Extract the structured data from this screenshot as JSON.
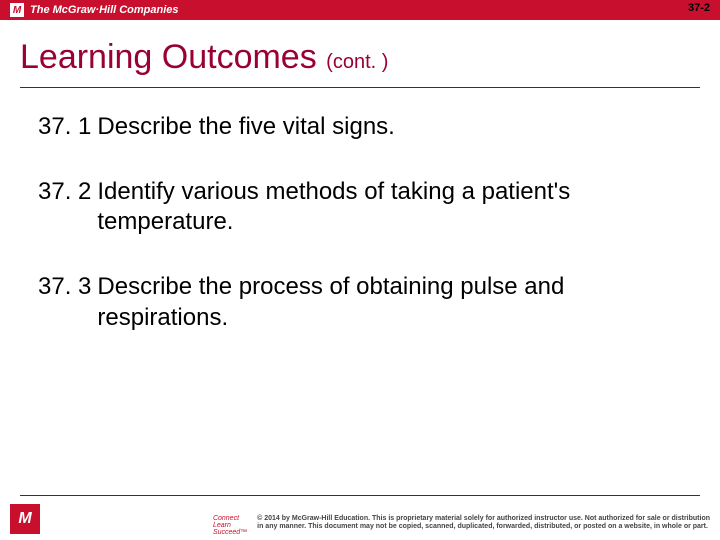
{
  "brand": {
    "logo_letter": "M",
    "companies_text": "The McGraw·Hill Companies",
    "bar_color": "#c8102e"
  },
  "slide_number": "37-2",
  "title": {
    "main": "Learning Outcomes ",
    "cont": "(cont. )",
    "color": "#990033"
  },
  "outcomes": [
    {
      "num": "37. 1",
      "text": "Describe the five vital signs."
    },
    {
      "num": "37. 2",
      "text": "Identify various methods of taking a patient's temperature."
    },
    {
      "num": "37. 3",
      "text": "Describe the process of obtaining pulse and respirations."
    }
  ],
  "footer": {
    "logo_letter": "M",
    "tagline_l1": "Connect",
    "tagline_l2": "Learn",
    "tagline_l3": "Succeed™",
    "copyright_l1": "© 2014 by McGraw-Hill Education. This is proprietary material solely for authorized instructor use. Not authorized for sale or distribution",
    "copyright_l2": "in any manner. This document may not be copied, scanned, duplicated, forwarded, distributed, or posted on a website, in whole or part."
  }
}
